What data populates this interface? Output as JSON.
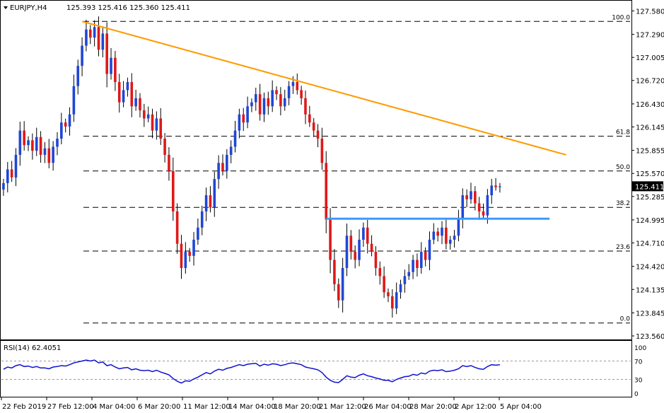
{
  "header": {
    "symbol": "EURJPY,H4",
    "quote": "125.393 125.416 125.360 125.411",
    "indicator": "RSI(14) 62.4051"
  },
  "colors": {
    "bull": "#1f46d6",
    "bear": "#e01818",
    "wick": "#000000",
    "trendline": "#ff9a00",
    "support": "#3c9aff",
    "rsi": "#1010d0",
    "price_label_bg": "#000000",
    "price_label_text": "#ffffff"
  },
  "chart_data": [
    {
      "type": "candlestick",
      "title": "",
      "ylim": [
        123.56,
        127.61
      ],
      "y_ticks": [
        "127.580",
        "127.290",
        "127.005",
        "126.720",
        "126.430",
        "126.145",
        "125.855",
        "125.570",
        "125.285",
        "124.995",
        "124.710",
        "124.420",
        "124.135",
        "123.845",
        "123.560"
      ],
      "last_price_label": "125.411",
      "x_tick_labels": [
        "22 Feb 2019",
        "27 Feb 12:00",
        "4 Mar 04:00",
        "6 Mar 20:00",
        "11 Mar 12:00",
        "14 Mar 04:00",
        "18 Mar 20:00",
        "21 Mar 12:00",
        "26 Mar 04:00",
        "28 Mar 20:00",
        "2 Apr 12:00",
        "5 Apr 04:00"
      ],
      "fib_levels": [
        {
          "label": "100.0",
          "value": 127.45
        },
        {
          "label": "61.8",
          "value": 126.03
        },
        {
          "label": "50.0",
          "value": 125.6
        },
        {
          "label": "38.2",
          "value": 125.15
        },
        {
          "label": "23.6",
          "value": 124.61
        },
        {
          "label": "0.0",
          "value": 123.72
        }
      ],
      "trendline": {
        "from": {
          "bar": 19,
          "price": 127.45
        },
        "to": {
          "bar": 136,
          "price": 125.8
        }
      },
      "support_line": {
        "from": {
          "bar": 78,
          "price": 125.01
        },
        "to": {
          "bar": 132,
          "price": 125.01
        }
      },
      "closes": [
        125.45,
        125.62,
        125.52,
        125.8,
        126.1,
        125.92,
        125.98,
        125.85,
        126.02,
        125.8,
        125.88,
        125.7,
        125.9,
        126.0,
        126.2,
        126.15,
        126.3,
        126.65,
        126.9,
        127.15,
        127.35,
        127.25,
        127.38,
        127.1,
        127.3,
        126.8,
        127.0,
        126.7,
        126.45,
        126.6,
        126.7,
        126.4,
        126.5,
        126.35,
        126.25,
        126.3,
        126.1,
        126.25,
        126.0,
        125.8,
        125.6,
        125.1,
        124.7,
        124.4,
        124.6,
        124.55,
        124.75,
        124.9,
        125.1,
        125.3,
        125.15,
        125.5,
        125.7,
        125.6,
        125.8,
        125.9,
        126.1,
        126.3,
        126.2,
        126.4,
        126.45,
        126.55,
        126.3,
        126.5,
        126.4,
        126.6,
        126.55,
        126.4,
        126.5,
        126.65,
        126.7,
        126.6,
        126.5,
        126.3,
        126.2,
        126.1,
        126.0,
        125.7,
        125.0,
        124.5,
        124.2,
        124.0,
        124.4,
        124.8,
        124.6,
        124.5,
        124.75,
        124.9,
        124.7,
        124.6,
        124.4,
        124.3,
        124.1,
        124.05,
        123.9,
        124.1,
        124.2,
        124.3,
        124.35,
        124.5,
        124.4,
        124.6,
        124.5,
        124.75,
        124.85,
        124.8,
        124.9,
        124.7,
        124.75,
        124.8,
        125.0,
        125.3,
        125.25,
        125.35,
        125.2,
        125.1,
        125.05,
        125.3,
        125.42,
        125.4,
        125.41
      ],
      "rsi": {
        "name": "RSI(14)",
        "ylim": [
          0,
          100
        ],
        "levels": [
          70,
          30
        ],
        "tick_labels": [
          "100",
          "70",
          "30",
          "0"
        ],
        "values": [
          52,
          57,
          55,
          60,
          62,
          58,
          59,
          56,
          58,
          55,
          55,
          53,
          57,
          58,
          60,
          59,
          62,
          66,
          68,
          70,
          72,
          70,
          72,
          66,
          68,
          60,
          62,
          57,
          53,
          55,
          56,
          51,
          53,
          50,
          49,
          50,
          47,
          50,
          46,
          43,
          40,
          32,
          26,
          22,
          27,
          26,
          31,
          35,
          40,
          45,
          42,
          48,
          52,
          50,
          54,
          56,
          59,
          62,
          60,
          63,
          64,
          65,
          59,
          63,
          61,
          64,
          63,
          60,
          62,
          65,
          66,
          64,
          62,
          57,
          55,
          53,
          51,
          45,
          35,
          28,
          24,
          23,
          30,
          38,
          35,
          34,
          39,
          42,
          38,
          36,
          33,
          31,
          28,
          28,
          25,
          30,
          33,
          36,
          37,
          41,
          39,
          44,
          42,
          48,
          50,
          49,
          51,
          47,
          48,
          50,
          53,
          60,
          58,
          60,
          56,
          53,
          52,
          58,
          62,
          61,
          62
        ]
      }
    }
  ]
}
